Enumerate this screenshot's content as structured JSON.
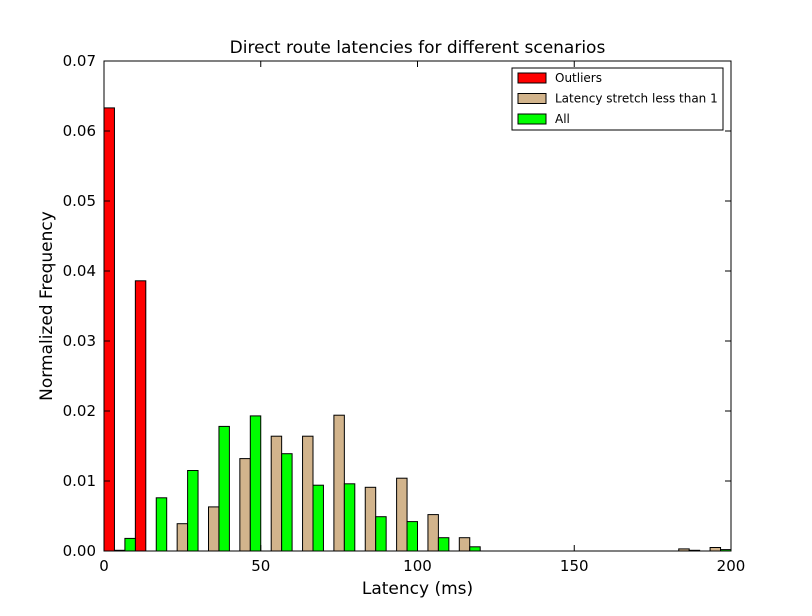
{
  "chart_data": {
    "type": "bar",
    "title": "Direct route latencies for different scenarios",
    "xlabel": "Latency (ms)",
    "ylabel": "Normalized Frequency",
    "xlim": [
      0,
      200
    ],
    "ylim": [
      0,
      0.07
    ],
    "x_ticks": [
      "0",
      "50",
      "100",
      "150",
      "200"
    ],
    "y_ticks": [
      "0.00",
      "0.01",
      "0.02",
      "0.03",
      "0.04",
      "0.05",
      "0.06",
      "0.07"
    ],
    "grid": false,
    "legend_position": "top-right",
    "bin_edges": [
      0,
      10,
      20,
      30,
      40,
      50,
      60,
      70,
      80,
      90,
      100,
      110,
      120,
      130,
      140,
      150,
      160,
      170,
      180,
      190,
      200
    ],
    "series": [
      {
        "name": "Outliers",
        "color": "#ff0000",
        "values": [
          0.0633,
          0.0386,
          0,
          0,
          0,
          0,
          0,
          0,
          0,
          0,
          0,
          0,
          0,
          0,
          0,
          0,
          0,
          0,
          0,
          0
        ]
      },
      {
        "name": "Latency stretch less than 1",
        "color": "#d2b48c",
        "values": [
          0.0001,
          0,
          0.0039,
          0.0063,
          0.0132,
          0.0164,
          0.0164,
          0.0194,
          0.0091,
          0.0104,
          0.0052,
          0.0019,
          0,
          0,
          0,
          0,
          0,
          0,
          0.0003,
          0.0005
        ]
      },
      {
        "name": "All",
        "color": "#00ff00",
        "values": [
          0.0018,
          0.0076,
          0.0115,
          0.0178,
          0.0193,
          0.0139,
          0.0094,
          0.0096,
          0.0049,
          0.0042,
          0.0019,
          0.0006,
          0,
          0,
          0,
          0,
          0,
          0,
          0.0001,
          0.0002
        ]
      }
    ]
  }
}
